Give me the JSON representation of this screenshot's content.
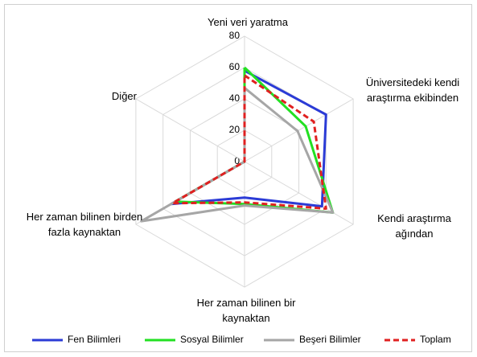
{
  "chart_data": {
    "type": "radar",
    "categories": [
      "Yeni veri yaratma",
      "Üniversitedeki kendi araştırma ekibinden",
      "Kendi araştırma ağından",
      "Her zaman bilinen bir kaynaktan",
      "Her zaman bilinen birden fazla kaynaktan",
      "Diğer"
    ],
    "ylim": [
      0,
      80
    ],
    "yticks": [
      0,
      20,
      40,
      60,
      80
    ],
    "grid": true,
    "legend": "bottom",
    "series": [
      {
        "name": "Fen Bilimleri",
        "color": "#2b3bd6",
        "dash": false,
        "values": [
          58,
          60,
          57,
          23,
          54,
          0
        ]
      },
      {
        "name": "Sosyal Bilimler",
        "color": "#22e022",
        "dash": false,
        "values": [
          60,
          45,
          65,
          27,
          51,
          0
        ]
      },
      {
        "name": "Beşeri Bilimler",
        "color": "#a6a6a6",
        "dash": false,
        "values": [
          47,
          39,
          65,
          28,
          76,
          0
        ]
      },
      {
        "name": "Toplam",
        "color": "#e02020",
        "dash": true,
        "values": [
          55,
          51,
          60,
          26,
          53,
          0
        ]
      }
    ]
  }
}
